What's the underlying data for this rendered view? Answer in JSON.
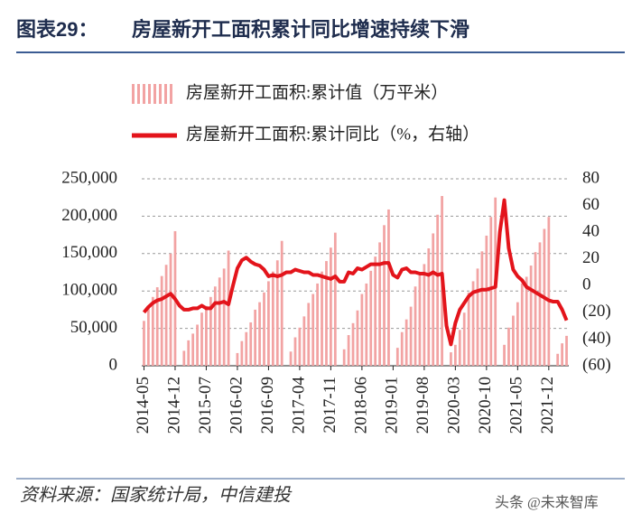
{
  "header": {
    "label": "图表29：",
    "title": "房屋新开工面积累计同比增速持续下滑"
  },
  "chart_data": {
    "type": "bar",
    "categories": [
      "2014-05",
      null,
      null,
      null,
      null,
      null,
      null,
      "2014-12",
      null,
      null,
      null,
      null,
      null,
      null,
      "2015-07",
      null,
      null,
      null,
      null,
      null,
      null,
      "2016-02",
      null,
      null,
      null,
      null,
      null,
      null,
      "2016-09",
      null,
      null,
      null,
      null,
      null,
      null,
      "2017-04",
      null,
      null,
      null,
      null,
      null,
      null,
      "2017-11",
      null,
      null,
      null,
      null,
      null,
      null,
      "2018-06",
      null,
      null,
      null,
      null,
      null,
      null,
      "2019-01",
      null,
      null,
      null,
      null,
      null,
      null,
      "2019-08",
      null,
      null,
      null,
      null,
      null,
      null,
      "2020-03",
      null,
      null,
      null,
      null,
      null,
      null,
      "2020-10",
      null,
      null,
      null,
      null,
      null,
      null,
      "2021-05",
      null,
      null,
      null,
      null,
      null,
      null,
      "2021-12",
      null,
      null,
      null,
      null
    ],
    "series": [
      {
        "name": "房屋新开工面积:累计值（万平米）",
        "type": "bar",
        "color": "#f2a3a3",
        "values": [
          60000,
          80000,
          92000,
          105000,
          120000,
          135000,
          150000,
          180000,
          null,
          20000,
          34000,
          43000,
          55000,
          71000,
          80000,
          92000,
          106000,
          118000,
          130000,
          154000,
          null,
          17000,
          33000,
          45000,
          58000,
          75000,
          85000,
          98000,
          113000,
          126000,
          141000,
          167000,
          null,
          19000,
          38000,
          51000,
          66000,
          84000,
          96000,
          110000,
          126000,
          140000,
          158000,
          178000,
          null,
          22000,
          41000,
          57000,
          74000,
          96000,
          110000,
          127000,
          146000,
          165000,
          188000,
          209000,
          null,
          24000,
          45000,
          62000,
          79000,
          106000,
          121000,
          136000,
          157000,
          177000,
          202000,
          227000,
          null,
          18000,
          28000,
          48000,
          71000,
          98000,
          113000,
          130000,
          153000,
          174000,
          199000,
          225000,
          null,
          28000,
          51000,
          67000,
          85000,
          110000,
          119000,
          134000,
          152000,
          165000,
          183000,
          199000,
          null,
          16000,
          30000,
          40000
        ]
      },
      {
        "name": "房屋新开工面积:累计同比（%，右轴）",
        "type": "line",
        "axis": "y2",
        "color": "#e3141b",
        "values": [
          -20,
          -16,
          -13,
          -11,
          -10,
          -8,
          -6,
          -10,
          -15,
          -18,
          -18,
          -17,
          -17,
          -15,
          -17,
          -17,
          -13,
          -13,
          -12,
          -14,
          0,
          13,
          19,
          21,
          18,
          16,
          15,
          12,
          7,
          8,
          7,
          8,
          10,
          10,
          12,
          11,
          10,
          10,
          8,
          8,
          7,
          6,
          5,
          7,
          3,
          3,
          10,
          9,
          13,
          12,
          14,
          16,
          16,
          16,
          17,
          17,
          8,
          6,
          12,
          13,
          10,
          10,
          9,
          9,
          8,
          10,
          8,
          9,
          -30,
          -44,
          -28,
          -18,
          -13,
          -8,
          -5,
          -4,
          -3,
          -3,
          -2,
          -1,
          40,
          64,
          28,
          12,
          7,
          4,
          -1,
          -3,
          -5,
          -7,
          -9,
          -11,
          -12,
          -12,
          -18,
          -26
        ]
      }
    ],
    "ylim": [
      0,
      250000
    ],
    "yticks": [
      0,
      {
        "value": 50000,
        "label": "50,000"
      },
      {
        "value": 100000,
        "label": "100,000"
      },
      {
        "value": 150000,
        "label": "150,000"
      },
      {
        "value": 200000,
        "label": "200,000"
      },
      {
        "value": 250000,
        "label": "250,000"
      }
    ],
    "y2lim": [
      -60,
      80
    ],
    "y2ticks": [
      {
        "value": -60,
        "label": "(60)"
      },
      {
        "value": -40,
        "label": "(40)"
      },
      {
        "value": -20,
        "label": "(20)"
      },
      0,
      20,
      40,
      60,
      80
    ],
    "grid": true
  },
  "source": "资料来源：国家统计局，中信建投",
  "watermark": "头条 @未来智库"
}
